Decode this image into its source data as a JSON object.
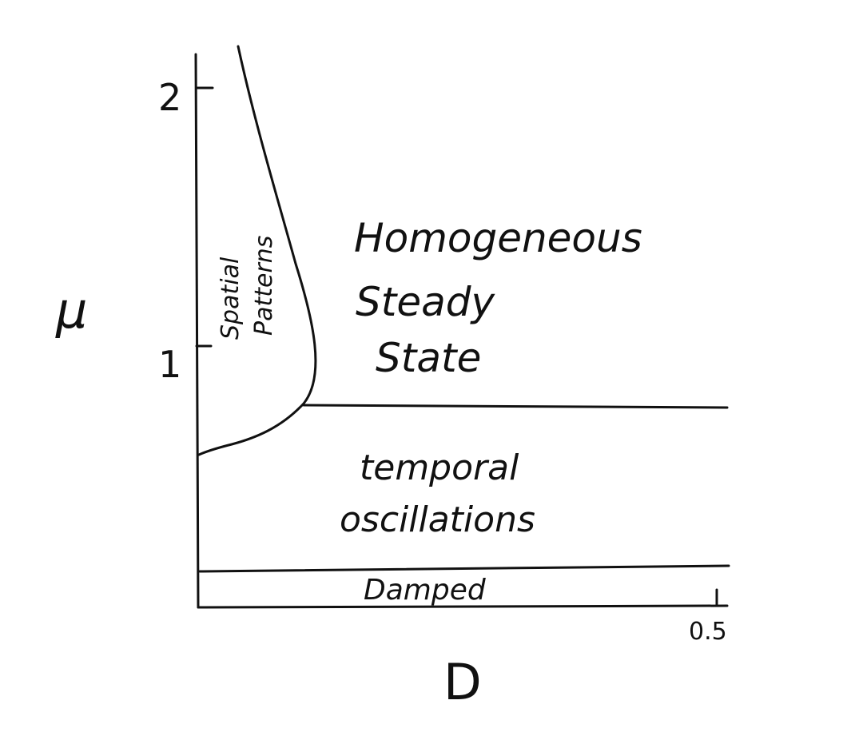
{
  "chart_data": {
    "type": "phase-diagram",
    "xlabel": "D",
    "ylabel": "μ",
    "x_ticks": [
      "0.5"
    ],
    "y_ticks": [
      "1",
      "2"
    ],
    "regions": [
      {
        "lines": [
          "Spatial",
          "Patterns"
        ]
      },
      {
        "lines": [
          "Homogeneous",
          "Steady",
          "State"
        ]
      },
      {
        "lines": [
          "temporal",
          "oscillations"
        ]
      },
      {
        "lines": [
          "Damped"
        ]
      }
    ]
  }
}
